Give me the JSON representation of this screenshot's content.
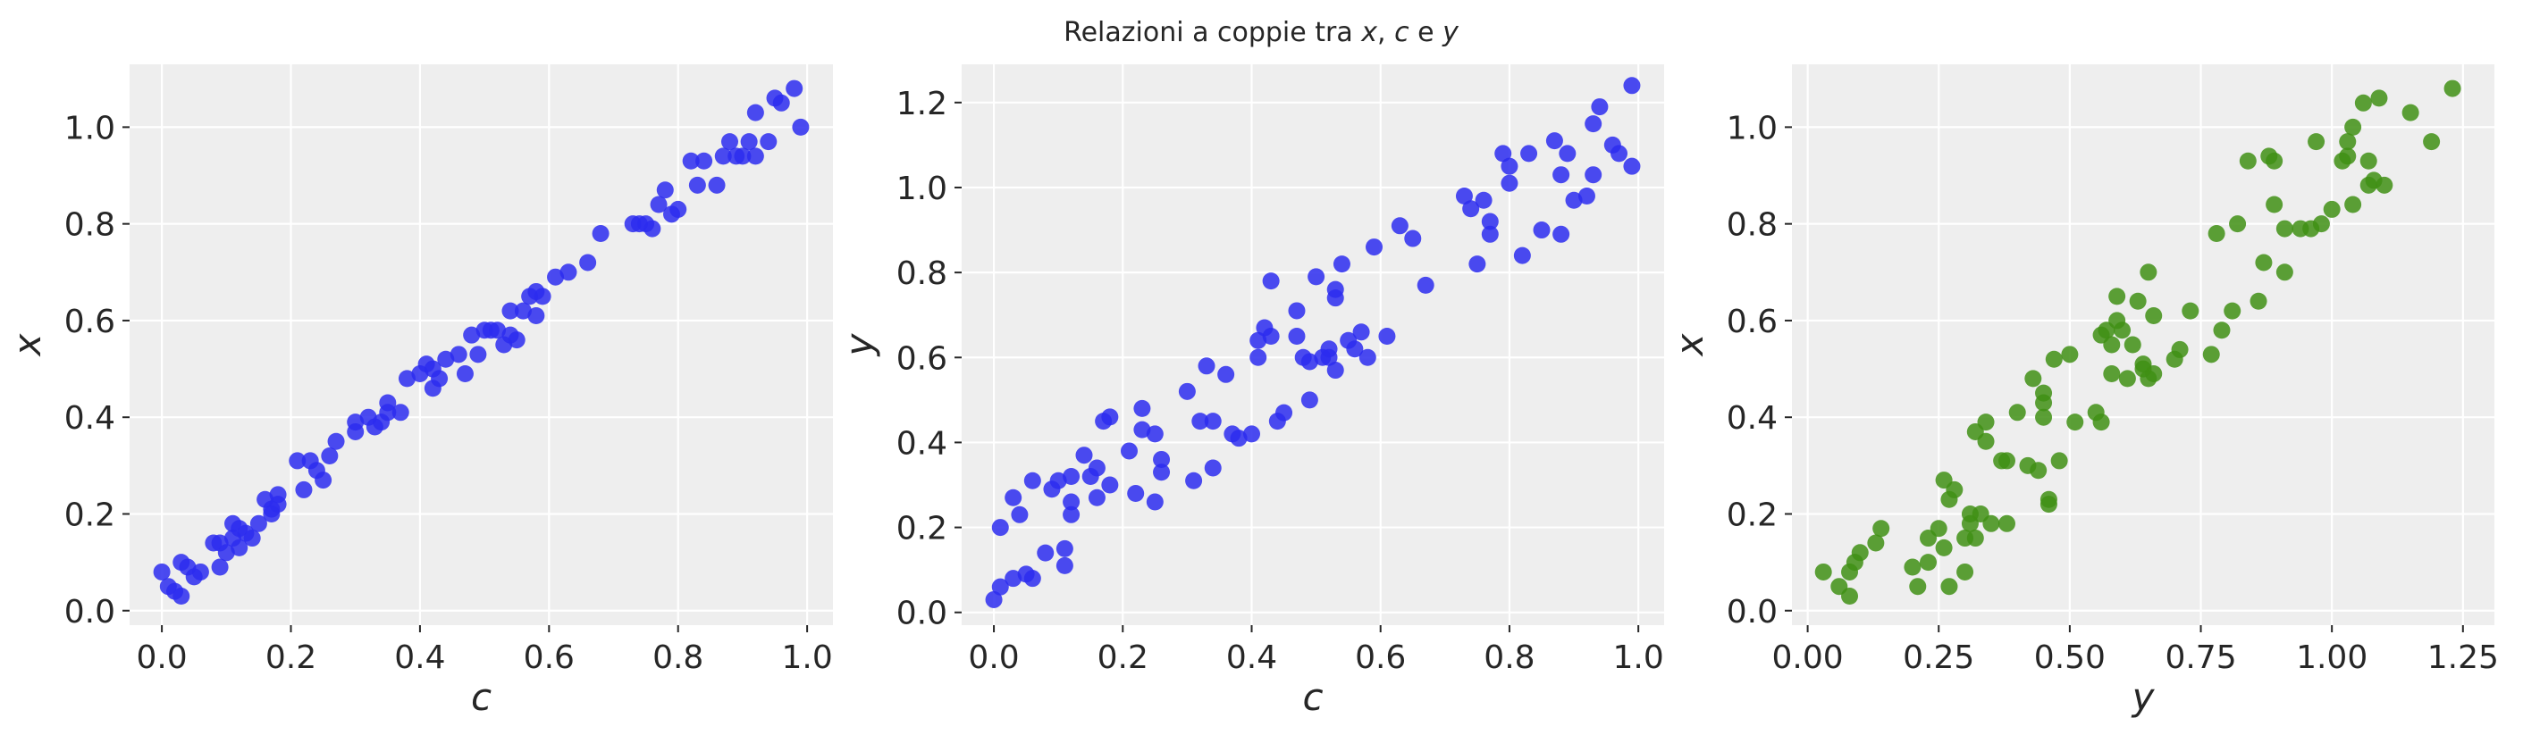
{
  "figure": {
    "title_prefix": "Relazioni a coppie tra ",
    "title_vars": [
      "x",
      "c",
      "y"
    ],
    "title_sep1": ", ",
    "title_sep2": " e "
  },
  "chart_data": [
    {
      "type": "scatter",
      "xlabel": "c",
      "ylabel": "x",
      "color": "#2b2bee",
      "xlim": [
        -0.05,
        1.04
      ],
      "ylim": [
        -0.03,
        1.13
      ],
      "xticks": [
        0.0,
        0.2,
        0.4,
        0.6,
        0.8,
        1.0
      ],
      "xtick_labels": [
        "0.0",
        "0.2",
        "0.4",
        "0.6",
        "0.8",
        "1.0"
      ],
      "yticks": [
        0.0,
        0.2,
        0.4,
        0.6,
        0.8,
        1.0
      ],
      "ytick_labels": [
        "0.0",
        "0.2",
        "0.4",
        "0.6",
        "0.8",
        "1.0"
      ],
      "grid": true,
      "points": [
        [
          0.0,
          0.08
        ],
        [
          0.01,
          0.05
        ],
        [
          0.02,
          0.04
        ],
        [
          0.03,
          0.1
        ],
        [
          0.03,
          0.03
        ],
        [
          0.04,
          0.09
        ],
        [
          0.05,
          0.07
        ],
        [
          0.06,
          0.08
        ],
        [
          0.08,
          0.14
        ],
        [
          0.09,
          0.14
        ],
        [
          0.09,
          0.09
        ],
        [
          0.1,
          0.12
        ],
        [
          0.11,
          0.18
        ],
        [
          0.11,
          0.15
        ],
        [
          0.12,
          0.17
        ],
        [
          0.12,
          0.13
        ],
        [
          0.13,
          0.16
        ],
        [
          0.14,
          0.15
        ],
        [
          0.15,
          0.18
        ],
        [
          0.16,
          0.23
        ],
        [
          0.17,
          0.21
        ],
        [
          0.17,
          0.2
        ],
        [
          0.18,
          0.24
        ],
        [
          0.18,
          0.22
        ],
        [
          0.21,
          0.31
        ],
        [
          0.22,
          0.25
        ],
        [
          0.23,
          0.31
        ],
        [
          0.24,
          0.29
        ],
        [
          0.25,
          0.27
        ],
        [
          0.26,
          0.32
        ],
        [
          0.27,
          0.35
        ],
        [
          0.3,
          0.37
        ],
        [
          0.3,
          0.39
        ],
        [
          0.32,
          0.4
        ],
        [
          0.33,
          0.38
        ],
        [
          0.34,
          0.39
        ],
        [
          0.35,
          0.41
        ],
        [
          0.35,
          0.43
        ],
        [
          0.37,
          0.41
        ],
        [
          0.38,
          0.48
        ],
        [
          0.4,
          0.49
        ],
        [
          0.41,
          0.51
        ],
        [
          0.42,
          0.5
        ],
        [
          0.42,
          0.46
        ],
        [
          0.43,
          0.48
        ],
        [
          0.44,
          0.52
        ],
        [
          0.46,
          0.53
        ],
        [
          0.47,
          0.49
        ],
        [
          0.48,
          0.57
        ],
        [
          0.49,
          0.53
        ],
        [
          0.5,
          0.58
        ],
        [
          0.51,
          0.58
        ],
        [
          0.52,
          0.58
        ],
        [
          0.53,
          0.55
        ],
        [
          0.54,
          0.62
        ],
        [
          0.54,
          0.57
        ],
        [
          0.55,
          0.56
        ],
        [
          0.56,
          0.62
        ],
        [
          0.57,
          0.65
        ],
        [
          0.58,
          0.61
        ],
        [
          0.58,
          0.66
        ],
        [
          0.59,
          0.65
        ],
        [
          0.61,
          0.69
        ],
        [
          0.63,
          0.7
        ],
        [
          0.66,
          0.72
        ],
        [
          0.68,
          0.78
        ],
        [
          0.73,
          0.8
        ],
        [
          0.74,
          0.8
        ],
        [
          0.75,
          0.8
        ],
        [
          0.76,
          0.79
        ],
        [
          0.77,
          0.84
        ],
        [
          0.78,
          0.87
        ],
        [
          0.79,
          0.82
        ],
        [
          0.8,
          0.83
        ],
        [
          0.82,
          0.93
        ],
        [
          0.83,
          0.88
        ],
        [
          0.84,
          0.93
        ],
        [
          0.86,
          0.88
        ],
        [
          0.87,
          0.94
        ],
        [
          0.88,
          0.97
        ],
        [
          0.89,
          0.94
        ],
        [
          0.9,
          0.94
        ],
        [
          0.91,
          0.97
        ],
        [
          0.92,
          0.94
        ],
        [
          0.92,
          1.03
        ],
        [
          0.94,
          0.97
        ],
        [
          0.95,
          1.06
        ],
        [
          0.96,
          1.05
        ],
        [
          0.98,
          1.08
        ],
        [
          0.99,
          1.0
        ]
      ]
    },
    {
      "type": "scatter",
      "xlabel": "c",
      "ylabel": "y",
      "color": "#2b2bee",
      "xlim": [
        -0.05,
        1.04
      ],
      "ylim": [
        -0.03,
        1.29
      ],
      "xticks": [
        0.0,
        0.2,
        0.4,
        0.6,
        0.8,
        1.0
      ],
      "xtick_labels": [
        "0.0",
        "0.2",
        "0.4",
        "0.6",
        "0.8",
        "1.0"
      ],
      "yticks": [
        0.0,
        0.2,
        0.4,
        0.6,
        0.8,
        1.0,
        1.2
      ],
      "ytick_labels": [
        "0.0",
        "0.2",
        "0.4",
        "0.6",
        "0.8",
        "1.0",
        "1.2"
      ],
      "grid": true,
      "points": [
        [
          0.0,
          0.03
        ],
        [
          0.01,
          0.06
        ],
        [
          0.01,
          0.2
        ],
        [
          0.03,
          0.27
        ],
        [
          0.03,
          0.08
        ],
        [
          0.04,
          0.23
        ],
        [
          0.05,
          0.09
        ],
        [
          0.06,
          0.08
        ],
        [
          0.06,
          0.31
        ],
        [
          0.08,
          0.14
        ],
        [
          0.09,
          0.29
        ],
        [
          0.1,
          0.31
        ],
        [
          0.11,
          0.15
        ],
        [
          0.11,
          0.11
        ],
        [
          0.12,
          0.32
        ],
        [
          0.12,
          0.26
        ],
        [
          0.12,
          0.23
        ],
        [
          0.14,
          0.37
        ],
        [
          0.15,
          0.32
        ],
        [
          0.16,
          0.27
        ],
        [
          0.16,
          0.34
        ],
        [
          0.17,
          0.45
        ],
        [
          0.18,
          0.46
        ],
        [
          0.18,
          0.3
        ],
        [
          0.21,
          0.38
        ],
        [
          0.22,
          0.28
        ],
        [
          0.23,
          0.48
        ],
        [
          0.23,
          0.43
        ],
        [
          0.25,
          0.42
        ],
        [
          0.25,
          0.26
        ],
        [
          0.26,
          0.36
        ],
        [
          0.26,
          0.33
        ],
        [
          0.3,
          0.52
        ],
        [
          0.31,
          0.31
        ],
        [
          0.32,
          0.45
        ],
        [
          0.33,
          0.58
        ],
        [
          0.34,
          0.34
        ],
        [
          0.34,
          0.45
        ],
        [
          0.36,
          0.56
        ],
        [
          0.37,
          0.42
        ],
        [
          0.38,
          0.41
        ],
        [
          0.4,
          0.42
        ],
        [
          0.41,
          0.64
        ],
        [
          0.41,
          0.6
        ],
        [
          0.42,
          0.67
        ],
        [
          0.43,
          0.78
        ],
        [
          0.43,
          0.65
        ],
        [
          0.44,
          0.45
        ],
        [
          0.45,
          0.47
        ],
        [
          0.47,
          0.71
        ],
        [
          0.47,
          0.65
        ],
        [
          0.48,
          0.6
        ],
        [
          0.49,
          0.59
        ],
        [
          0.49,
          0.5
        ],
        [
          0.5,
          0.79
        ],
        [
          0.51,
          0.6
        ],
        [
          0.52,
          0.62
        ],
        [
          0.52,
          0.6
        ],
        [
          0.53,
          0.76
        ],
        [
          0.53,
          0.74
        ],
        [
          0.53,
          0.57
        ],
        [
          0.54,
          0.82
        ],
        [
          0.55,
          0.64
        ],
        [
          0.56,
          0.62
        ],
        [
          0.57,
          0.66
        ],
        [
          0.58,
          0.6
        ],
        [
          0.59,
          0.86
        ],
        [
          0.61,
          0.65
        ],
        [
          0.63,
          0.91
        ],
        [
          0.65,
          0.88
        ],
        [
          0.67,
          0.77
        ],
        [
          0.73,
          0.98
        ],
        [
          0.74,
          0.95
        ],
        [
          0.75,
          0.82
        ],
        [
          0.76,
          0.97
        ],
        [
          0.77,
          0.89
        ],
        [
          0.77,
          0.92
        ],
        [
          0.79,
          1.08
        ],
        [
          0.8,
          1.01
        ],
        [
          0.8,
          1.05
        ],
        [
          0.82,
          0.84
        ],
        [
          0.83,
          1.08
        ],
        [
          0.85,
          0.9
        ],
        [
          0.87,
          1.11
        ],
        [
          0.88,
          0.89
        ],
        [
          0.88,
          1.03
        ],
        [
          0.89,
          1.08
        ],
        [
          0.9,
          0.97
        ],
        [
          0.92,
          0.98
        ],
        [
          0.93,
          1.03
        ],
        [
          0.93,
          1.15
        ],
        [
          0.94,
          1.19
        ],
        [
          0.96,
          1.1
        ],
        [
          0.97,
          1.08
        ],
        [
          0.99,
          1.05
        ],
        [
          0.99,
          1.24
        ]
      ]
    },
    {
      "type": "scatter",
      "xlabel": "y",
      "ylabel": "x",
      "color": "#3f8f14",
      "xlim": [
        -0.03,
        1.31
      ],
      "ylim": [
        -0.03,
        1.13
      ],
      "xticks": [
        0.0,
        0.25,
        0.5,
        0.75,
        1.0,
        1.25
      ],
      "xtick_labels": [
        "0.00",
        "0.25",
        "0.50",
        "0.75",
        "1.00",
        "1.25"
      ],
      "yticks": [
        0.0,
        0.2,
        0.4,
        0.6,
        0.8,
        1.0
      ],
      "ytick_labels": [
        "0.0",
        "0.2",
        "0.4",
        "0.6",
        "0.8",
        "1.0"
      ],
      "grid": true,
      "points": [
        [
          0.03,
          0.08
        ],
        [
          0.06,
          0.05
        ],
        [
          0.08,
          0.03
        ],
        [
          0.08,
          0.08
        ],
        [
          0.09,
          0.1
        ],
        [
          0.1,
          0.12
        ],
        [
          0.13,
          0.14
        ],
        [
          0.14,
          0.17
        ],
        [
          0.2,
          0.09
        ],
        [
          0.21,
          0.05
        ],
        [
          0.23,
          0.15
        ],
        [
          0.23,
          0.1
        ],
        [
          0.25,
          0.17
        ],
        [
          0.26,
          0.13
        ],
        [
          0.26,
          0.27
        ],
        [
          0.27,
          0.23
        ],
        [
          0.27,
          0.05
        ],
        [
          0.28,
          0.25
        ],
        [
          0.3,
          0.08
        ],
        [
          0.3,
          0.15
        ],
        [
          0.31,
          0.2
        ],
        [
          0.31,
          0.18
        ],
        [
          0.32,
          0.37
        ],
        [
          0.32,
          0.15
        ],
        [
          0.33,
          0.2
        ],
        [
          0.34,
          0.35
        ],
        [
          0.34,
          0.39
        ],
        [
          0.35,
          0.18
        ],
        [
          0.37,
          0.31
        ],
        [
          0.38,
          0.31
        ],
        [
          0.38,
          0.18
        ],
        [
          0.4,
          0.41
        ],
        [
          0.42,
          0.3
        ],
        [
          0.43,
          0.48
        ],
        [
          0.44,
          0.29
        ],
        [
          0.45,
          0.43
        ],
        [
          0.45,
          0.4
        ],
        [
          0.45,
          0.45
        ],
        [
          0.46,
          0.23
        ],
        [
          0.46,
          0.22
        ],
        [
          0.47,
          0.52
        ],
        [
          0.48,
          0.31
        ],
        [
          0.5,
          0.53
        ],
        [
          0.51,
          0.39
        ],
        [
          0.55,
          0.41
        ],
        [
          0.56,
          0.39
        ],
        [
          0.56,
          0.57
        ],
        [
          0.57,
          0.58
        ],
        [
          0.58,
          0.55
        ],
        [
          0.58,
          0.49
        ],
        [
          0.59,
          0.6
        ],
        [
          0.59,
          0.65
        ],
        [
          0.6,
          0.58
        ],
        [
          0.61,
          0.48
        ],
        [
          0.62,
          0.55
        ],
        [
          0.63,
          0.64
        ],
        [
          0.64,
          0.51
        ],
        [
          0.64,
          0.5
        ],
        [
          0.65,
          0.48
        ],
        [
          0.65,
          0.7
        ],
        [
          0.66,
          0.61
        ],
        [
          0.66,
          0.49
        ],
        [
          0.7,
          0.52
        ],
        [
          0.71,
          0.54
        ],
        [
          0.73,
          0.62
        ],
        [
          0.77,
          0.53
        ],
        [
          0.78,
          0.78
        ],
        [
          0.79,
          0.58
        ],
        [
          0.81,
          0.62
        ],
        [
          0.82,
          0.8
        ],
        [
          0.84,
          0.93
        ],
        [
          0.86,
          0.64
        ],
        [
          0.87,
          0.72
        ],
        [
          0.88,
          0.94
        ],
        [
          0.89,
          0.84
        ],
        [
          0.89,
          0.93
        ],
        [
          0.91,
          0.79
        ],
        [
          0.91,
          0.7
        ],
        [
          0.94,
          0.79
        ],
        [
          0.96,
          0.79
        ],
        [
          0.97,
          0.97
        ],
        [
          0.98,
          0.8
        ],
        [
          1.0,
          0.83
        ],
        [
          1.02,
          0.93
        ],
        [
          1.03,
          0.94
        ],
        [
          1.03,
          0.97
        ],
        [
          1.04,
          0.84
        ],
        [
          1.04,
          1.0
        ],
        [
          1.06,
          1.05
        ],
        [
          1.07,
          0.93
        ],
        [
          1.07,
          0.88
        ],
        [
          1.08,
          0.89
        ],
        [
          1.09,
          1.06
        ],
        [
          1.1,
          0.88
        ],
        [
          1.15,
          1.03
        ],
        [
          1.19,
          0.97
        ],
        [
          1.23,
          1.08
        ]
      ]
    }
  ]
}
